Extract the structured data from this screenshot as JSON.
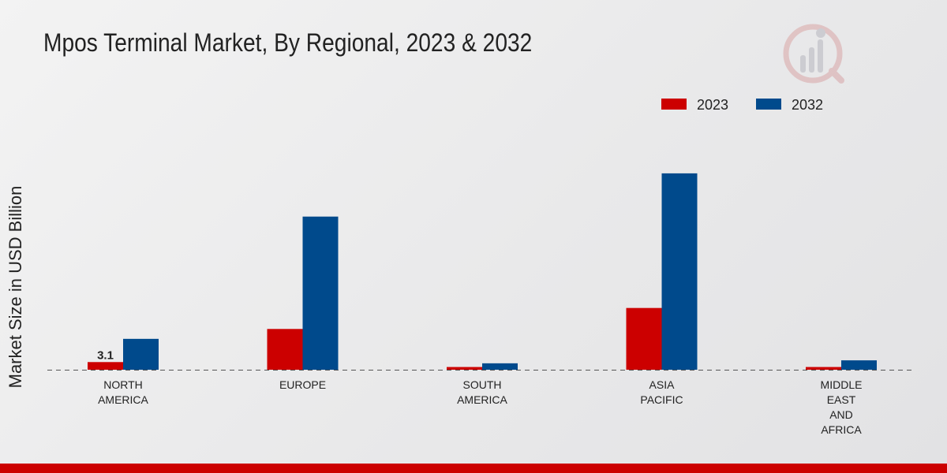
{
  "title": "Mpos Terminal Market, By Regional, 2023 & 2032",
  "colors": {
    "series_2023": "#cc0000",
    "series_2032": "#004a8c",
    "footer": "#cc0000",
    "text": "#222222"
  },
  "chart_data": {
    "type": "bar",
    "title": "Mpos Terminal Market, By Regional, 2023 & 2032",
    "xlabel": "",
    "ylabel": "Market Size in USD Billion",
    "categories": [
      [
        "NORTH",
        "AMERICA"
      ],
      [
        "EUROPE"
      ],
      [
        "SOUTH",
        "AMERICA"
      ],
      [
        "ASIA",
        "PACIFIC"
      ],
      [
        "MIDDLE",
        "EAST",
        "AND",
        "AFRICA"
      ]
    ],
    "series": [
      {
        "name": "2023",
        "color": "#cc0000",
        "values": [
          3.1,
          16.5,
          1.1,
          25.0,
          1.1
        ]
      },
      {
        "name": "2032",
        "color": "#004a8c",
        "values": [
          12.5,
          62.0,
          2.6,
          79.5,
          3.8
        ]
      }
    ],
    "data_labels": [
      {
        "series": 0,
        "index": 0,
        "text": "3.1"
      }
    ],
    "ylim": [
      0,
      105
    ],
    "grid": false,
    "legend_position": "top-right"
  }
}
